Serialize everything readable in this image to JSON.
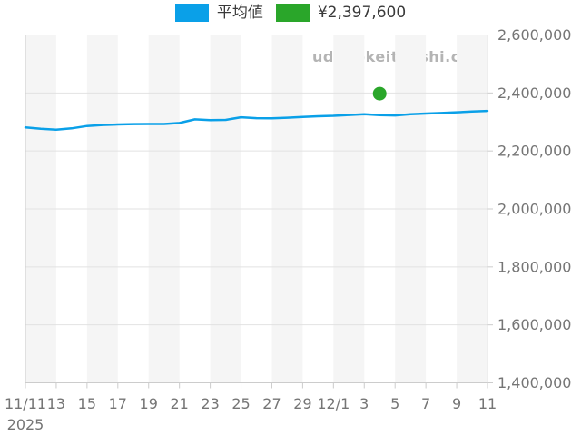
{
  "site_watermark": "udedokeitoushi.com",
  "legend": [
    {
      "label": "平均値",
      "color": "#0aa0e8"
    },
    {
      "label": "¥2,397,600",
      "color": "#2aa62a"
    }
  ],
  "chart_data": {
    "type": "line",
    "title": "",
    "xlabel": "",
    "ylabel": "",
    "x_axis": {
      "year_label": "2025",
      "tick_labels": [
        "11/11",
        "13",
        "15",
        "17",
        "19",
        "21",
        "23",
        "25",
        "27",
        "29",
        "12/1",
        "3",
        "5",
        "7",
        "9",
        "11"
      ],
      "tick_days": [
        0,
        2,
        4,
        6,
        8,
        10,
        12,
        14,
        16,
        18,
        20,
        22,
        24,
        26,
        28,
        30
      ],
      "total_days": 30
    },
    "y_axis": {
      "min": 1400000,
      "max": 2600000,
      "step": 200000,
      "tick_labels": [
        "2,600,000",
        "2,400,000",
        "2,200,000",
        "2,000,000",
        "1,800,000",
        "1,600,000",
        "1,400,000"
      ]
    },
    "series": [
      {
        "name": "平均値",
        "color": "#0aa0e8",
        "days": [
          0,
          1,
          2,
          3,
          4,
          5,
          6,
          7,
          8,
          9,
          10,
          11,
          12,
          13,
          14,
          15,
          16,
          17,
          18,
          19,
          20,
          21,
          22,
          23,
          24,
          25,
          26,
          27,
          28,
          29,
          30
        ],
        "values": [
          2281000,
          2276500,
          2273500,
          2278000,
          2286000,
          2289500,
          2291500,
          2292500,
          2293000,
          2293000,
          2296500,
          2309000,
          2306500,
          2307000,
          2316000,
          2313000,
          2312500,
          2314500,
          2317000,
          2319500,
          2321000,
          2324000,
          2326500,
          2323500,
          2322500,
          2326500,
          2329000,
          2331000,
          2333500,
          2336000,
          2338000
        ]
      }
    ],
    "marker": {
      "label": "¥2,397,600",
      "color": "#2aa62a",
      "day": 23,
      "value": 2397600
    },
    "style": {
      "stripe_color": "#f5f5f5",
      "grid_color": "#e2e2e2",
      "axis_color": "#cccccc",
      "tick_text_color": "#757575",
      "legend_position": "top-center",
      "grid": "horizontal-only"
    }
  }
}
